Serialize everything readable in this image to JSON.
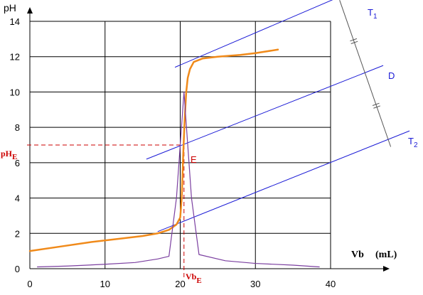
{
  "chart_data": {
    "type": "line",
    "title": "",
    "ylabel": "pH",
    "xlabel": "Vb",
    "xlabel_unit": "(mL)",
    "xlim": [
      0,
      40
    ],
    "ylim": [
      0,
      14
    ],
    "x_ticks": [
      0,
      10,
      20,
      30,
      40
    ],
    "y_ticks": [
      0,
      2,
      4,
      6,
      8,
      10,
      12,
      14
    ],
    "grid": true,
    "colors": {
      "titration": "#f08a1a",
      "derivative": "#7b3fa0",
      "tangents": "#1a1ad6",
      "equivalence": "#cc0000",
      "grid": "#000000"
    },
    "series": [
      {
        "role": "titration-curve",
        "x": [
          0,
          4,
          8,
          12,
          15,
          17,
          18.5,
          19.5,
          20,
          20.2,
          20.4,
          20.6,
          20.8,
          21.0,
          21.3,
          21.8,
          23,
          25,
          28,
          30,
          33
        ],
        "y": [
          1.0,
          1.25,
          1.5,
          1.7,
          1.85,
          2.0,
          2.2,
          2.5,
          2.9,
          4.0,
          6.5,
          8.5,
          10.0,
          10.8,
          11.3,
          11.7,
          11.9,
          12.0,
          12.1,
          12.2,
          12.4
        ]
      },
      {
        "role": "derivative-curve",
        "x": [
          1,
          5,
          10,
          14,
          17,
          18.5,
          19.5,
          20.5,
          21.5,
          22.5,
          26,
          30,
          35,
          38.5
        ],
        "y": [
          0.1,
          0.15,
          0.25,
          0.35,
          0.55,
          0.7,
          4.0,
          10.0,
          4.0,
          0.8,
          0.45,
          0.3,
          0.2,
          0.1
        ]
      }
    ],
    "reference_lines": [
      {
        "role": "T1",
        "name": "T",
        "sub": "1",
        "x1": 19.3,
        "y1": 11.4,
        "x2": 44,
        "y2": 15.9
      },
      {
        "role": "D",
        "name": "D",
        "sub": "",
        "x1": 15.5,
        "y1": 6.2,
        "x2": 47,
        "y2": 11.5
      },
      {
        "role": "T2",
        "name": "T",
        "sub": "2",
        "x1": 17,
        "y1": 2.1,
        "x2": 50.5,
        "y2": 7.8
      },
      {
        "role": "perpendicular",
        "x1": 41.2,
        "y1": 15.2,
        "x2": 48,
        "y2": 6.9
      }
    ],
    "equivalence": {
      "point_label": "E",
      "pH_label": "pH",
      "pH_sub": "E",
      "Vb_label": "Vb",
      "Vb_sub": "E",
      "x": 20.5,
      "y": 7.0
    }
  }
}
